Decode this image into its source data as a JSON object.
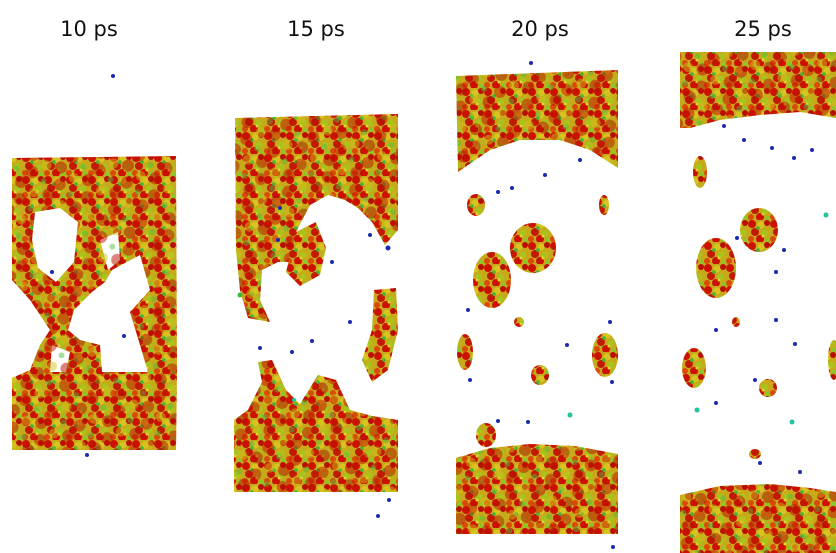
{
  "panels": [
    {
      "label": "10 ps"
    },
    {
      "label": "15 ps"
    },
    {
      "label": "20 ps"
    },
    {
      "label": "25 ps"
    }
  ],
  "colors": {
    "background": "#ffffff",
    "atom_red": "#cc1100",
    "atom_orange": "#d9550a",
    "atom_yellow": "#c9c21a",
    "atom_green": "#3fb83a",
    "atom_teal": "#1fc49a",
    "atom_blue": "#1a2bb0"
  }
}
